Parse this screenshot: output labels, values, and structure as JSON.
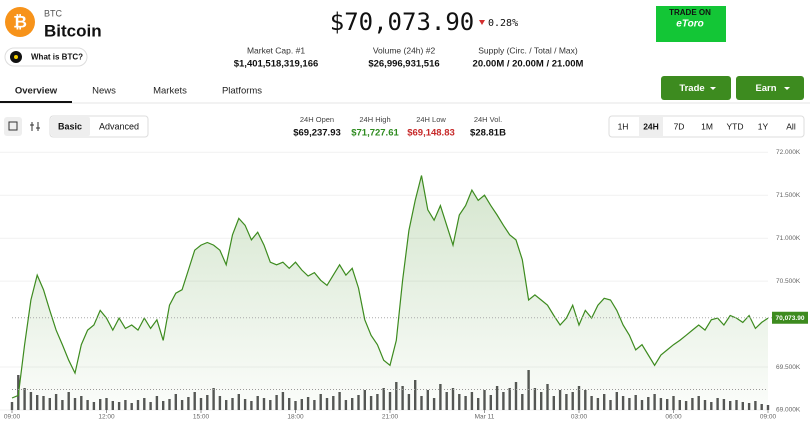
{
  "header": {
    "logo": "₿",
    "symbol": "BTC",
    "name": "Bitcoin",
    "price": "$70,073.90",
    "change": "0.28%",
    "what_is": "What is BTC?"
  },
  "ad": {
    "line1": "TRADE ON",
    "brand": "eToro"
  },
  "stats": [
    {
      "label": "Market Cap. #1",
      "value": "$1,401,518,319,166"
    },
    {
      "label": "Volume (24h) #2",
      "value": "$26,996,931,516"
    },
    {
      "label": "Supply (Circ. / Total / Max)",
      "value": "20.00M / 20.00M / 21.00M"
    }
  ],
  "tabs": [
    "Overview",
    "News",
    "Markets",
    "Platforms"
  ],
  "actions": [
    "Trade",
    "Earn"
  ],
  "modes": [
    "Basic",
    "Advanced"
  ],
  "summary": [
    {
      "label": "24H Open",
      "value": "$69,237.93"
    },
    {
      "label": "24H High",
      "value": "$71,727.61"
    },
    {
      "label": "24H Low",
      "value": "$69,148.83"
    },
    {
      "label": "24H Vol.",
      "value": "$28.81B"
    }
  ],
  "ranges": [
    "1H",
    "24H",
    "7D",
    "1M",
    "YTD",
    "1Y",
    "All"
  ],
  "chart_data": {
    "type": "line",
    "color": "#3d8b1f",
    "volume_color": "#555555",
    "x": [
      0,
      0.2,
      0.4,
      0.6,
      0.8,
      1,
      1.2,
      1.4,
      1.6,
      1.8,
      2,
      2.2,
      2.4,
      2.6,
      2.8,
      3,
      3.2,
      3.4,
      3.6,
      3.8,
      4,
      4.2,
      4.4,
      4.6,
      4.8,
      5,
      5.2,
      5.4,
      5.6,
      5.8,
      6,
      6.2,
      6.4,
      6.6,
      6.8,
      7,
      7.2,
      7.4,
      7.6,
      7.8,
      8,
      8.2,
      8.4,
      8.6,
      8.8,
      9,
      9.2,
      9.4,
      9.6,
      9.8,
      10,
      10.2,
      10.4,
      10.6,
      10.8,
      11,
      11.2,
      11.4,
      11.6,
      11.8,
      12,
      12.2,
      12.4,
      12.6,
      12.8,
      13,
      13.2,
      13.4,
      13.6,
      13.8,
      14,
      14.2,
      14.4,
      14.6,
      14.8,
      15,
      15.2,
      15.4,
      15.6,
      15.8,
      16,
      16.2,
      16.4,
      16.6,
      16.8,
      17,
      17.2,
      17.4,
      17.6,
      17.8,
      18,
      18.2,
      18.4,
      18.6,
      18.8,
      19,
      19.2,
      19.4,
      19.6,
      19.8,
      20,
      20.2,
      20.4,
      20.6,
      20.8,
      21,
      21.2,
      21.4,
      21.6,
      21.8,
      22,
      22.2,
      22.4,
      22.6,
      22.8,
      23,
      23.2,
      23.4,
      23.6,
      23.8,
      24
    ],
    "values": [
      69140,
      69170,
      69760,
      70280,
      70570,
      70400,
      70160,
      69930,
      69760,
      69580,
      69430,
      69760,
      69930,
      69990,
      70160,
      70070,
      69930,
      70070,
      69950,
      69990,
      69930,
      70070,
      69950,
      70050,
      69810,
      70220,
      70360,
      70400,
      70630,
      70860,
      70920,
      70950,
      70920,
      70860,
      70690,
      71040,
      71230,
      71150,
      70980,
      71070,
      70920,
      70720,
      70690,
      70720,
      70650,
      70720,
      70630,
      70560,
      70600,
      70510,
      70450,
      70570,
      70690,
      70570,
      70650,
      70420,
      70050,
      69870,
      69760,
      69580,
      69520,
      69810,
      70510,
      71090,
      71440,
      71730,
      71330,
      71210,
      71380,
      71150,
      70920,
      71270,
      71380,
      71560,
      71440,
      71500,
      71380,
      71270,
      71150,
      71040,
      70980,
      70750,
      70280,
      70340,
      70280,
      70220,
      70100,
      69990,
      70070,
      70220,
      69990,
      70160,
      70070,
      70220,
      70300,
      70280,
      70160,
      69990,
      69870,
      69700,
      69760,
      69640,
      69520,
      69640,
      69700,
      69760,
      69810,
      69870,
      69930,
      69990,
      69930,
      70050,
      70070,
      69990,
      70100,
      70070,
      70020,
      70100,
      69950,
      70020,
      70070
    ],
    "volume": [
      8,
      35,
      22,
      18,
      15,
      14,
      12,
      16,
      10,
      18,
      12,
      14,
      10,
      8,
      11,
      12,
      9,
      8,
      10,
      7,
      10,
      12,
      8,
      14,
      9,
      11,
      16,
      10,
      13,
      18,
      12,
      15,
      22,
      14,
      10,
      12,
      16,
      11,
      9,
      14,
      12,
      10,
      15,
      18,
      12,
      9,
      11,
      13,
      10,
      16,
      12,
      14,
      18,
      10,
      12,
      15,
      20,
      14,
      16,
      22,
      18,
      28,
      24,
      16,
      30,
      14,
      20,
      12,
      26,
      18,
      22,
      16,
      14,
      18,
      12,
      20,
      15,
      24,
      18,
      22,
      28,
      16,
      40,
      22,
      18,
      26,
      14,
      20,
      16,
      18,
      24,
      20,
      14,
      12,
      16,
      10,
      18,
      14,
      12,
      15,
      10,
      13,
      16,
      12,
      11,
      14,
      10,
      9,
      12,
      14,
      10,
      8,
      12,
      11,
      9,
      10,
      8,
      7,
      9,
      6,
      5
    ],
    "xlim": [
      0,
      24
    ],
    "xticks": [
      {
        "value": 0,
        "label": "09:00"
      },
      {
        "value": 3,
        "label": "12:00"
      },
      {
        "value": 6,
        "label": "15:00"
      },
      {
        "value": 9,
        "label": "18:00"
      },
      {
        "value": 12,
        "label": "21:00"
      },
      {
        "value": 15,
        "label": "Mar 11"
      },
      {
        "value": 18,
        "label": "03:00"
      },
      {
        "value": 21,
        "label": "06:00"
      },
      {
        "value": 24,
        "label": "09:00"
      }
    ],
    "ylim": [
      69000,
      72050
    ],
    "yticks": [
      {
        "value": 69000,
        "label": "69.000K"
      },
      {
        "value": 69500,
        "label": "69.500K"
      },
      {
        "value": 70500,
        "label": "70.500K"
      },
      {
        "value": 71000,
        "label": "71.000K"
      },
      {
        "value": 71500,
        "label": "71.500K"
      },
      {
        "value": 72000,
        "label": "72.000K"
      }
    ],
    "grid": true,
    "open": 69237.93,
    "last_price": {
      "value": 70073.9,
      "label": "70,073.90"
    }
  }
}
